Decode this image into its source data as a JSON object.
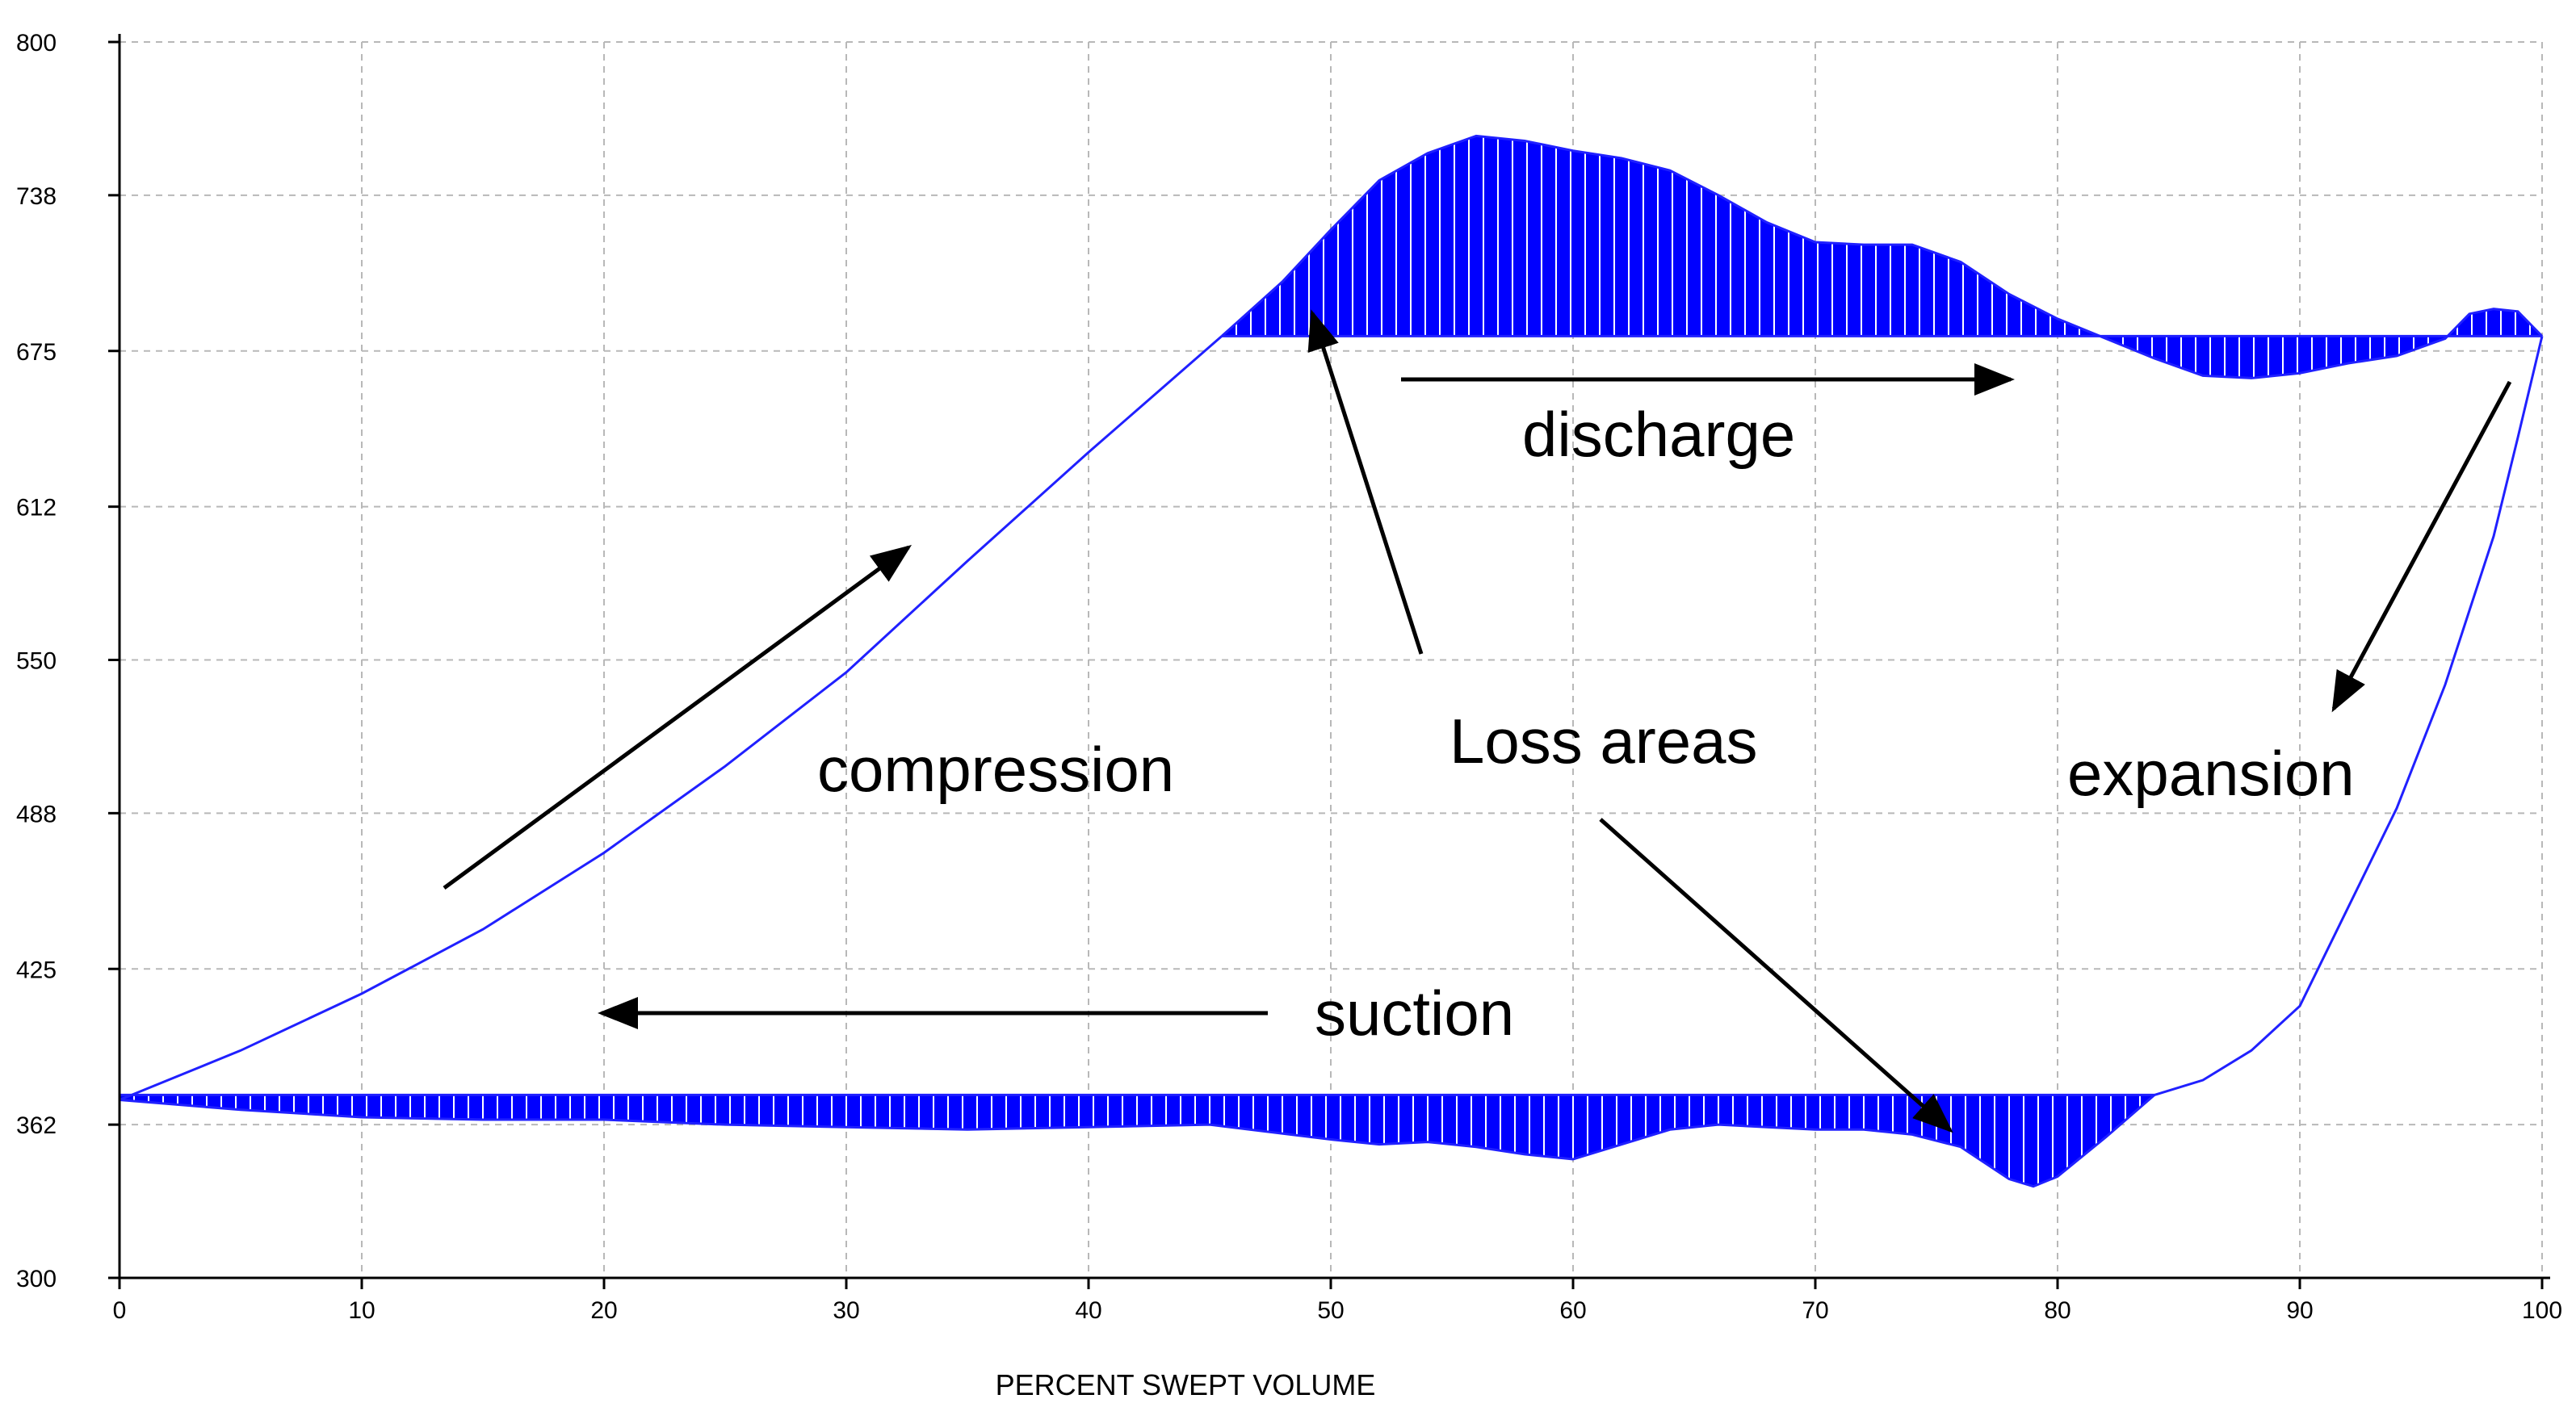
{
  "chart_data": {
    "type": "line",
    "title": "",
    "xlabel": "PERCENT SWEPT VOLUME",
    "ylabel": "",
    "xlim": [
      0,
      100
    ],
    "ylim": [
      300,
      800
    ],
    "x_ticks": [
      0,
      10,
      20,
      30,
      40,
      50,
      60,
      70,
      80,
      90,
      100
    ],
    "y_ticks": [
      300,
      362,
      425,
      488,
      550,
      612,
      675,
      738,
      800
    ],
    "grid": true,
    "series": [
      {
        "name": "compression",
        "x": [
          0,
          5,
          10,
          15,
          20,
          25,
          30,
          35,
          40,
          45.5
        ],
        "y": [
          372,
          392,
          415,
          441,
          472,
          507,
          545,
          590,
          634,
          681
        ]
      },
      {
        "name": "discharge",
        "x": [
          45.5,
          48,
          50,
          52,
          54,
          56,
          58,
          60,
          62,
          64,
          66,
          68,
          70,
          72,
          74,
          76,
          78,
          80,
          82,
          84,
          86,
          88,
          90,
          92,
          94,
          96,
          97,
          98,
          99,
          100
        ],
        "y": [
          681,
          703,
          724,
          744,
          755,
          762,
          760,
          756,
          753,
          748,
          738,
          727,
          719,
          718,
          718,
          711,
          698,
          688,
          680,
          672,
          665,
          664,
          666,
          670,
          673,
          680,
          690,
          692,
          691,
          681
        ]
      },
      {
        "name": "expansion",
        "x": [
          100,
          99,
          98,
          96,
          94,
          92,
          90,
          88,
          86,
          84
        ],
        "y": [
          681,
          640,
          600,
          540,
          490,
          450,
          410,
          392,
          380,
          374
        ]
      },
      {
        "name": "suction",
        "x": [
          84,
          82,
          80,
          79,
          78,
          76,
          74,
          72,
          70,
          68,
          66,
          64,
          62,
          60,
          58,
          56,
          54,
          52,
          50,
          45,
          40,
          35,
          30,
          25,
          20,
          15,
          10,
          5,
          0
        ],
        "y": [
          374,
          357,
          341,
          337,
          340,
          353,
          358,
          360,
          360,
          361,
          362,
          360,
          354,
          348,
          350,
          353,
          355,
          354,
          356,
          362,
          361,
          360,
          361,
          362,
          364,
          364,
          365,
          368,
          372
        ]
      }
    ],
    "reference_lines": {
      "discharge_pressure": 681,
      "suction_pressure": 374
    },
    "annotations": [
      "compression",
      "discharge",
      "Loss areas",
      "expansion",
      "suction"
    ]
  }
}
